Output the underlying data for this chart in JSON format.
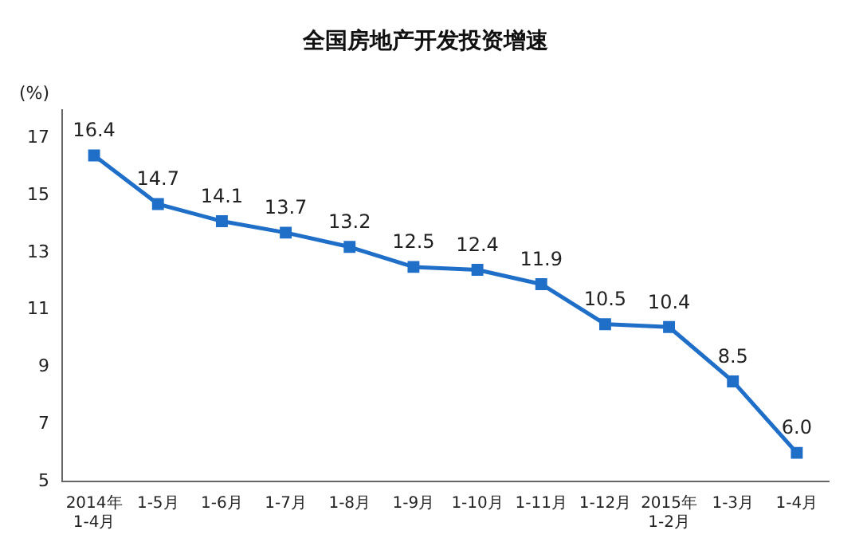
{
  "chart_data": {
    "type": "line",
    "title": "全国房地产开发投资增速",
    "ylabel": "(%)",
    "categories": [
      "2014年\n1-4月",
      "1-5月",
      "1-6月",
      "1-7月",
      "1-8月",
      "1-9月",
      "1-10月",
      "1-11月",
      "1-12月",
      "2015年\n1-2月",
      "1-3月",
      "1-4月"
    ],
    "series": [
      {
        "color": "#1f6fc8",
        "values": [
          16.4,
          14.7,
          14.1,
          13.7,
          13.2,
          12.5,
          12.4,
          11.9,
          10.5,
          10.4,
          8.5,
          6.0
        ],
        "value_labels": [
          "16.4",
          "14.7",
          "14.1",
          "13.7",
          "13.2",
          "12.5",
          "12.4",
          "11.9",
          "10.5",
          "10.4",
          "8.5",
          "6.0"
        ]
      }
    ],
    "ylim": [
      5,
      18
    ],
    "yticks": [
      5,
      7,
      9,
      11,
      13,
      15,
      17
    ],
    "grid": false,
    "legend": false,
    "marker": "square",
    "line_style": "solid"
  }
}
